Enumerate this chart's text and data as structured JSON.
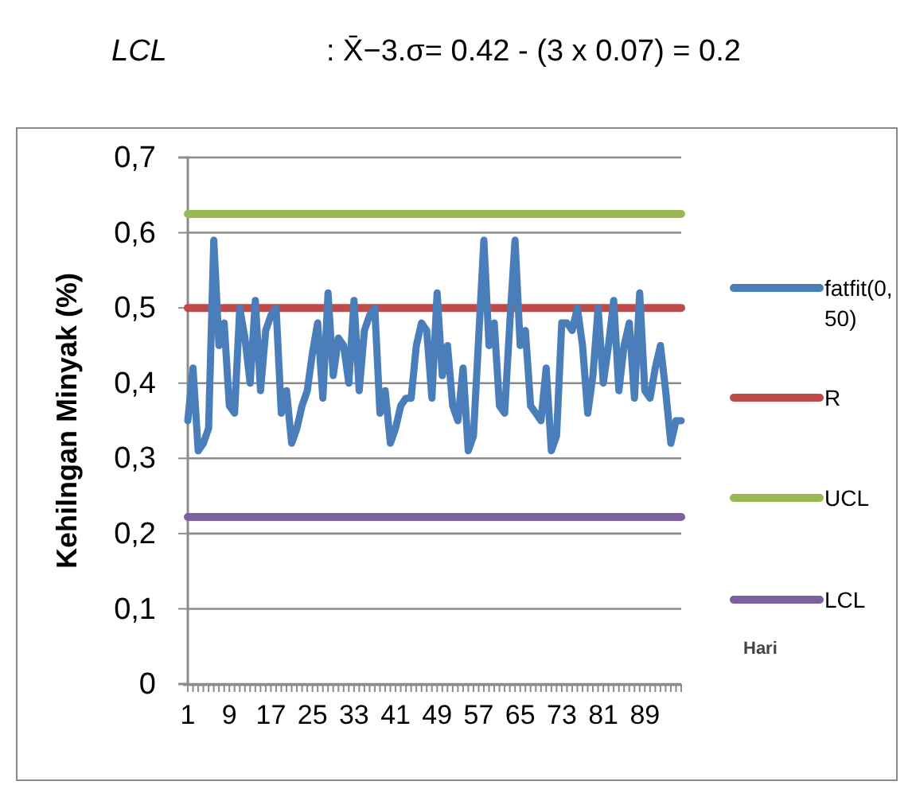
{
  "chart_data": {
    "type": "line",
    "annotations": [
      "LCL",
      ": X̄−3.σ= 0.42 - (3 x 0.07) = 0.2"
    ],
    "xlabel": "Hari",
    "ylabel": "Kehilngan Minyak (%)",
    "categories": [
      "1",
      null,
      null,
      null,
      null,
      null,
      null,
      null,
      "9",
      null,
      null,
      null,
      null,
      null,
      null,
      null,
      "17",
      null,
      null,
      null,
      null,
      null,
      null,
      null,
      "25",
      null,
      null,
      null,
      null,
      null,
      null,
      null,
      "33",
      null,
      null,
      null,
      null,
      null,
      null,
      null,
      "41",
      null,
      null,
      null,
      null,
      null,
      null,
      null,
      "49",
      null,
      null,
      null,
      null,
      null,
      null,
      null,
      "57",
      null,
      null,
      null,
      null,
      null,
      null,
      null,
      "65",
      null,
      null,
      null,
      null,
      null,
      null,
      null,
      "73",
      null,
      null,
      null,
      null,
      null,
      null,
      null,
      "81",
      null,
      null,
      null,
      null,
      null,
      null,
      null,
      "89",
      null,
      null,
      null,
      null,
      null,
      null,
      null
    ],
    "series": [
      {
        "name": "fatfit(0,50)",
        "color": "#4a7ebb",
        "values": [
          0.35,
          0.42,
          0.31,
          0.32,
          0.34,
          0.59,
          0.45,
          0.48,
          0.37,
          0.36,
          0.5,
          0.46,
          0.4,
          0.51,
          0.39,
          0.47,
          0.49,
          0.5,
          0.36,
          0.39,
          0.32,
          0.34,
          0.37,
          0.39,
          0.44,
          0.48,
          0.38,
          0.52,
          0.41,
          0.46,
          0.45,
          0.4,
          0.51,
          0.39,
          0.47,
          0.49,
          0.5,
          0.36,
          0.39,
          0.32,
          0.34,
          0.37,
          0.38,
          0.38,
          0.45,
          0.48,
          0.47,
          0.38,
          0.52,
          0.41,
          0.45,
          0.37,
          0.35,
          0.42,
          0.31,
          0.33,
          0.46,
          0.59,
          0.45,
          0.48,
          0.37,
          0.36,
          0.48,
          0.59,
          0.45,
          0.47,
          0.37,
          0.36,
          0.35,
          0.42,
          0.31,
          0.33,
          0.48,
          0.48,
          0.47,
          0.5,
          0.45,
          0.36,
          0.41,
          0.5,
          0.4,
          0.45,
          0.51,
          0.39,
          0.45,
          0.48,
          0.38,
          0.52,
          0.39,
          0.38,
          0.42,
          0.45,
          0.39,
          0.32,
          0.35,
          0.35
        ]
      },
      {
        "name": "R",
        "color": "#be4b48",
        "values": [
          0.5,
          0.5,
          0.5,
          0.5,
          0.5,
          0.5,
          0.5,
          0.5,
          0.5,
          0.5,
          0.5,
          0.5,
          0.5,
          0.5,
          0.5,
          0.5,
          0.5,
          0.5,
          0.5,
          0.5,
          0.5,
          0.5,
          0.5,
          0.5,
          0.5,
          0.5,
          0.5,
          0.5,
          0.5,
          0.5,
          0.5,
          0.5,
          0.5,
          0.5,
          0.5,
          0.5,
          0.5,
          0.5,
          0.5,
          0.5,
          0.5,
          0.5,
          0.5,
          0.5,
          0.5,
          0.5,
          0.5,
          0.5,
          0.5,
          0.5,
          0.5,
          0.5,
          0.5,
          0.5,
          0.5,
          0.5,
          0.5,
          0.5,
          0.5,
          0.5,
          0.5,
          0.5,
          0.5,
          0.5,
          0.5,
          0.5,
          0.5,
          0.5,
          0.5,
          0.5,
          0.5,
          0.5,
          0.5,
          0.5,
          0.5,
          0.5,
          0.5,
          0.5,
          0.5,
          0.5,
          0.5,
          0.5,
          0.5,
          0.5,
          0.5,
          0.5,
          0.5,
          0.5,
          0.5,
          0.5,
          0.5,
          0.5,
          0.5,
          0.5,
          0.5,
          0.5
        ]
      },
      {
        "name": "UCL",
        "color": "#98b954",
        "values": [
          0.625,
          0.625,
          0.625,
          0.625,
          0.625,
          0.625,
          0.625,
          0.625,
          0.625,
          0.625,
          0.625,
          0.625,
          0.625,
          0.625,
          0.625,
          0.625,
          0.625,
          0.625,
          0.625,
          0.625,
          0.625,
          0.625,
          0.625,
          0.625,
          0.625,
          0.625,
          0.625,
          0.625,
          0.625,
          0.625,
          0.625,
          0.625,
          0.625,
          0.625,
          0.625,
          0.625,
          0.625,
          0.625,
          0.625,
          0.625,
          0.625,
          0.625,
          0.625,
          0.625,
          0.625,
          0.625,
          0.625,
          0.625,
          0.625,
          0.625,
          0.625,
          0.625,
          0.625,
          0.625,
          0.625,
          0.625,
          0.625,
          0.625,
          0.625,
          0.625,
          0.625,
          0.625,
          0.625,
          0.625,
          0.625,
          0.625,
          0.625,
          0.625,
          0.625,
          0.625,
          0.625,
          0.625,
          0.625,
          0.625,
          0.625,
          0.625,
          0.625,
          0.625,
          0.625,
          0.625,
          0.625,
          0.625,
          0.625,
          0.625,
          0.625,
          0.625,
          0.625,
          0.625,
          0.625,
          0.625,
          0.625,
          0.625,
          0.625,
          0.625,
          0.625,
          0.625
        ]
      },
      {
        "name": "LCL",
        "color": "#7d60a0",
        "values": [
          0.222,
          0.222,
          0.222,
          0.222,
          0.222,
          0.222,
          0.222,
          0.222,
          0.222,
          0.222,
          0.222,
          0.222,
          0.222,
          0.222,
          0.222,
          0.222,
          0.222,
          0.222,
          0.222,
          0.222,
          0.222,
          0.222,
          0.222,
          0.222,
          0.222,
          0.222,
          0.222,
          0.222,
          0.222,
          0.222,
          0.222,
          0.222,
          0.222,
          0.222,
          0.222,
          0.222,
          0.222,
          0.222,
          0.222,
          0.222,
          0.222,
          0.222,
          0.222,
          0.222,
          0.222,
          0.222,
          0.222,
          0.222,
          0.222,
          0.222,
          0.222,
          0.222,
          0.222,
          0.222,
          0.222,
          0.222,
          0.222,
          0.222,
          0.222,
          0.222,
          0.222,
          0.222,
          0.222,
          0.222,
          0.222,
          0.222,
          0.222,
          0.222,
          0.222,
          0.222,
          0.222,
          0.222,
          0.222,
          0.222,
          0.222,
          0.222,
          0.222,
          0.222,
          0.222,
          0.222,
          0.222,
          0.222,
          0.222,
          0.222,
          0.222,
          0.222,
          0.222,
          0.222,
          0.222,
          0.222,
          0.222,
          0.222,
          0.222,
          0.222,
          0.222,
          0.222
        ]
      }
    ],
    "ylim": [
      0,
      0.7
    ],
    "yticks": [
      {
        "value": 0,
        "label": "0"
      },
      {
        "value": 0.1,
        "label": "0,1"
      },
      {
        "value": 0.2,
        "label": "0,2"
      },
      {
        "value": 0.3,
        "label": "0,3"
      },
      {
        "value": 0.4,
        "label": "0,4"
      },
      {
        "value": 0.5,
        "label": "0,5"
      },
      {
        "value": 0.6,
        "label": "0,6"
      },
      {
        "value": 0.7,
        "label": "0,7"
      }
    ],
    "grid": "y",
    "legend": "right"
  }
}
